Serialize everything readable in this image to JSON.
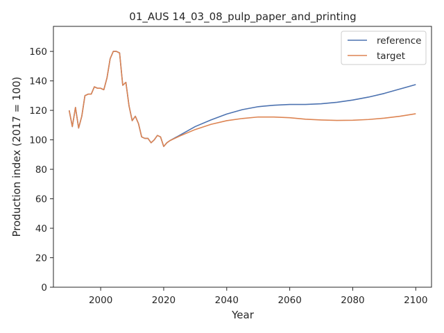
{
  "chart_data": {
    "type": "line",
    "title": "01_AUS 14_03_08_pulp_paper_and_printing",
    "xlabel": "Year",
    "ylabel": "Production index (2017 = 100)",
    "xlim": [
      1985,
      2105
    ],
    "ylim": [
      0,
      177
    ],
    "xticks": [
      2000,
      2020,
      2040,
      2060,
      2080,
      2100
    ],
    "yticks": [
      0,
      20,
      40,
      60,
      80,
      100,
      120,
      140,
      160
    ],
    "grid": false,
    "legend_position": "top-right",
    "colors": {
      "reference": "#4c72b0",
      "target": "#dd8452"
    },
    "series": [
      {
        "name": "reference",
        "x": [
          1990,
          1991,
          1992,
          1993,
          1994,
          1995,
          1996,
          1997,
          1998,
          1999,
          2000,
          2001,
          2002,
          2003,
          2004,
          2005,
          2006,
          2007,
          2008,
          2009,
          2010,
          2011,
          2012,
          2013,
          2014,
          2015,
          2016,
          2017,
          2018,
          2019,
          2020,
          2021,
          2022,
          2025,
          2030,
          2035,
          2040,
          2045,
          2050,
          2055,
          2060,
          2065,
          2070,
          2075,
          2080,
          2085,
          2090,
          2095,
          2100
        ],
        "values": [
          120,
          109,
          122,
          108,
          116,
          130,
          131,
          131,
          136,
          135,
          135,
          134,
          142,
          155,
          160,
          160,
          159,
          137,
          139,
          123,
          113,
          116,
          111,
          102,
          101,
          101,
          98,
          100,
          103,
          102,
          95.5,
          98,
          99.5,
          103,
          109,
          113.5,
          117.5,
          120.5,
          122.5,
          123.5,
          124,
          124,
          124.5,
          125.5,
          127,
          129,
          131.5,
          134.5,
          137.5
        ]
      },
      {
        "name": "target",
        "x": [
          1990,
          1991,
          1992,
          1993,
          1994,
          1995,
          1996,
          1997,
          1998,
          1999,
          2000,
          2001,
          2002,
          2003,
          2004,
          2005,
          2006,
          2007,
          2008,
          2009,
          2010,
          2011,
          2012,
          2013,
          2014,
          2015,
          2016,
          2017,
          2018,
          2019,
          2020,
          2021,
          2022,
          2025,
          2030,
          2035,
          2040,
          2045,
          2050,
          2055,
          2060,
          2065,
          2070,
          2075,
          2080,
          2085,
          2090,
          2095,
          2100
        ],
        "values": [
          120,
          109,
          122,
          108,
          116,
          130,
          131,
          131,
          136,
          135,
          135,
          134,
          142,
          155,
          160,
          160,
          159,
          137,
          139,
          123,
          113,
          116,
          111,
          102,
          101,
          101,
          98,
          100,
          103,
          102,
          95.5,
          98,
          99.5,
          102.5,
          107,
          110.5,
          113,
          114.5,
          115.5,
          115.5,
          115,
          114,
          113.5,
          113.2,
          113.3,
          113.8,
          114.7,
          116,
          117.7
        ]
      }
    ]
  }
}
